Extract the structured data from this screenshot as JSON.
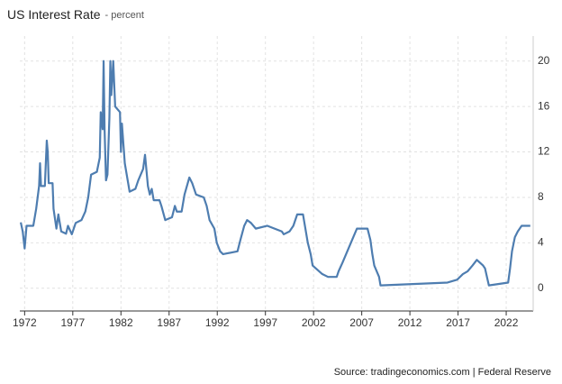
{
  "chart_data": {
    "type": "line",
    "title": "US Interest Rate",
    "subtitle": "- percent",
    "source": "Source: tradingeconomics.com | Federal Reserve",
    "xlim": [
      1971.5,
      2024.8
    ],
    "ylim": [
      -2,
      22.2
    ],
    "xticks": [
      1972,
      1977,
      1982,
      1987,
      1992,
      1997,
      2002,
      2007,
      2012,
      2017,
      2022
    ],
    "yticks": [
      0,
      4,
      8,
      12,
      16,
      20
    ],
    "grid": true,
    "series": [
      {
        "name": "US Interest Rate",
        "color": "#4e7db0",
        "x": [
          1971.6,
          1971.8,
          1972.0,
          1972.2,
          1972.9,
          1973.2,
          1973.5,
          1973.6,
          1973.7,
          1974.1,
          1974.3,
          1974.4,
          1974.5,
          1974.9,
          1975.0,
          1975.3,
          1975.5,
          1975.8,
          1976.3,
          1976.5,
          1976.9,
          1977.3,
          1977.9,
          1978.3,
          1978.6,
          1978.9,
          1979.5,
          1979.8,
          1979.9,
          1980.1,
          1980.2,
          1980.3,
          1980.45,
          1980.6,
          1980.8,
          1980.9,
          1981.0,
          1981.2,
          1981.4,
          1981.9,
          1982.0,
          1982.1,
          1982.4,
          1982.7,
          1982.9,
          1983.5,
          1983.8,
          1984.3,
          1984.5,
          1984.8,
          1985.0,
          1985.2,
          1985.4,
          1986.0,
          1986.2,
          1986.6,
          1987.3,
          1987.6,
          1987.8,
          1988.3,
          1988.6,
          1989.1,
          1989.4,
          1989.8,
          1990.6,
          1990.9,
          1991.2,
          1991.7,
          1991.95,
          1992.3,
          1992.6,
          1994.1,
          1994.4,
          1994.8,
          1995.1,
          1995.5,
          1996.0,
          1997.2,
          1998.7,
          1998.9,
          1999.5,
          1999.9,
          2000.3,
          2000.9,
          2001.2,
          2001.4,
          2001.7,
          2001.9,
          2002.9,
          2003.5,
          2004.4,
          2004.6,
          2005.0,
          2005.5,
          2006.0,
          2006.5,
          2007.6,
          2007.9,
          2008.1,
          2008.3,
          2008.8,
          2008.95,
          2015.9,
          2016.9,
          2017.5,
          2018.0,
          2018.5,
          2018.95,
          2019.6,
          2019.8,
          2020.2,
          2022.2,
          2022.4,
          2022.6,
          2022.9,
          2023.2,
          2023.6,
          2024.5
        ],
        "values": [
          5.8,
          5,
          3.5,
          5.5,
          5.5,
          7,
          9,
          11,
          9,
          9,
          13,
          12,
          9.25,
          9.25,
          7,
          5.25,
          6.5,
          5,
          4.8,
          5.5,
          4.75,
          5.75,
          6,
          6.75,
          8,
          10,
          10.25,
          11.5,
          15.5,
          14,
          20,
          14,
          9.5,
          10,
          15,
          20,
          17,
          20,
          16,
          15.5,
          12,
          14.5,
          11,
          9.5,
          8.5,
          8.75,
          9.5,
          10.5,
          11.75,
          9,
          8.25,
          8.75,
          7.75,
          7.75,
          7.25,
          6,
          6.25,
          7.25,
          6.75,
          6.75,
          8.25,
          9.75,
          9.25,
          8.25,
          8,
          7.25,
          6,
          5.25,
          4,
          3.25,
          3,
          3.25,
          4.25,
          5.5,
          6,
          5.75,
          5.25,
          5.5,
          5,
          4.75,
          5,
          5.5,
          6.5,
          6.5,
          5,
          4,
          3,
          2,
          1.25,
          1,
          1,
          1.5,
          2.25,
          3.25,
          4.25,
          5.25,
          5.25,
          4.25,
          3,
          2,
          1,
          0.25,
          0.5,
          0.75,
          1.25,
          1.5,
          2,
          2.5,
          2,
          1.75,
          0.25,
          0.5,
          1.75,
          3.25,
          4.5,
          5,
          5.5,
          5.5
        ]
      }
    ]
  }
}
